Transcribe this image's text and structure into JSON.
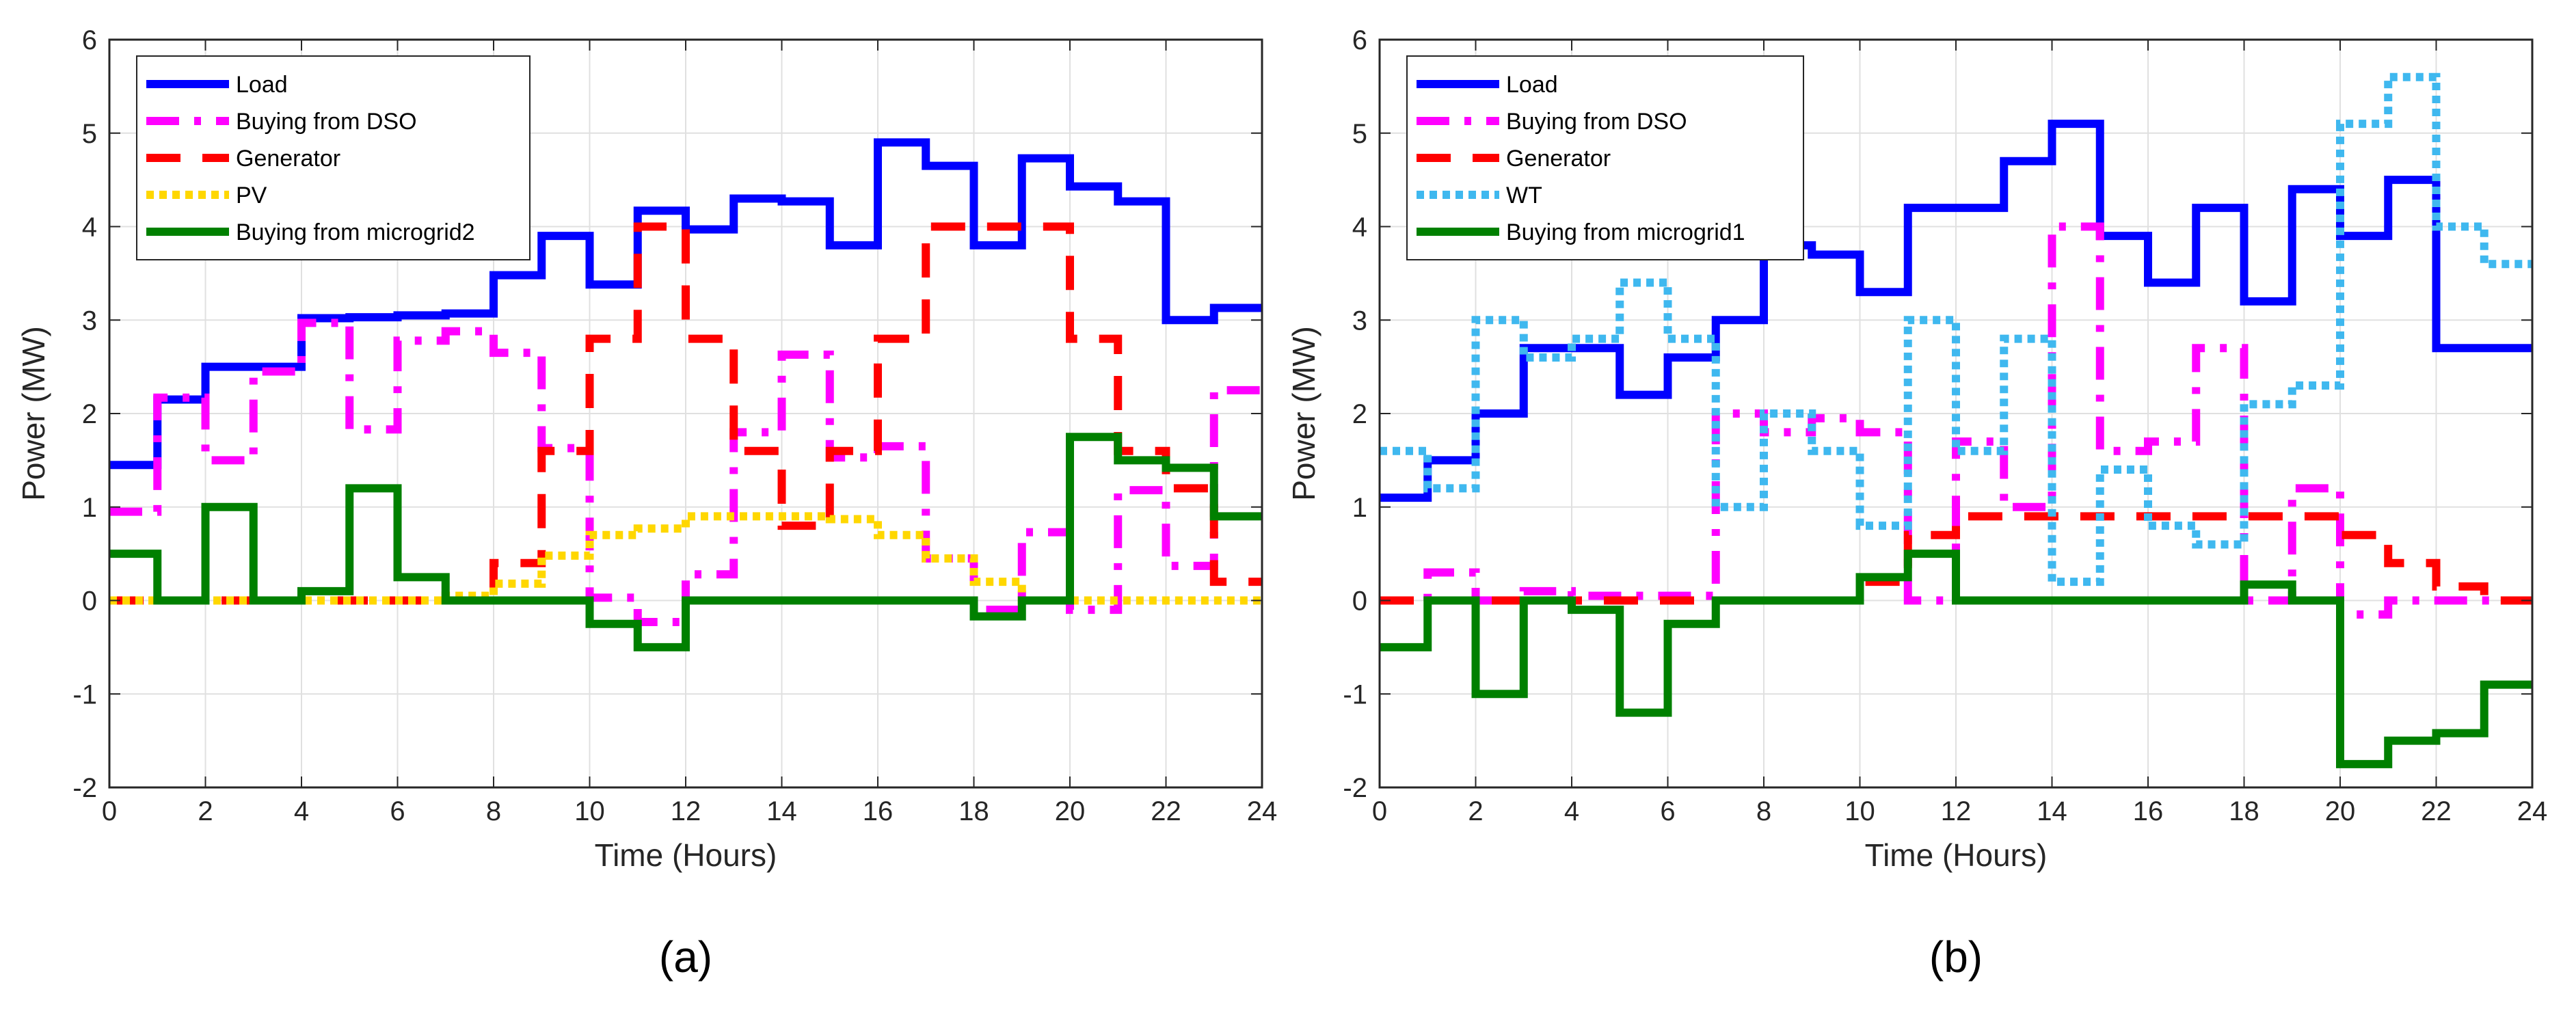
{
  "chart_data": [
    {
      "type": "line",
      "step": true,
      "panel_label": "(a)",
      "xlabel": "Time (Hours)",
      "ylabel": "Power (MW)",
      "xlim": [
        0,
        24
      ],
      "ylim": [
        -2,
        6
      ],
      "xticks": [
        "0",
        "2",
        "4",
        "6",
        "8",
        "10",
        "12",
        "14",
        "16",
        "18",
        "20",
        "22",
        "24"
      ],
      "yticks": [
        "-2",
        "-1",
        "0",
        "1",
        "2",
        "3",
        "4",
        "5",
        "6"
      ],
      "grid": true,
      "legend_position": "top-left",
      "x": [
        0,
        1,
        2,
        3,
        4,
        5,
        6,
        7,
        8,
        9,
        10,
        11,
        12,
        13,
        14,
        15,
        16,
        17,
        18,
        19,
        20,
        21,
        22,
        23
      ],
      "series": [
        {
          "name": "Load",
          "color": "#0000ff",
          "style": "solid",
          "values": [
            1.45,
            2.15,
            2.5,
            2.5,
            3.02,
            3.03,
            3.05,
            3.07,
            3.48,
            3.9,
            3.38,
            4.17,
            3.97,
            4.3,
            4.27,
            3.8,
            4.9,
            4.65,
            3.8,
            4.73,
            4.43,
            4.27,
            3.0,
            3.13
          ]
        },
        {
          "name": "Buying from DSO",
          "color": "#ff00ff",
          "style": "dashdot",
          "values": [
            0.95,
            2.17,
            1.5,
            2.45,
            2.97,
            1.83,
            2.78,
            2.88,
            2.65,
            1.63,
            0.03,
            -0.23,
            0.28,
            1.8,
            2.63,
            1.53,
            1.65,
            0.45,
            -0.1,
            0.73,
            -0.1,
            1.18,
            0.37,
            2.25
          ]
        },
        {
          "name": "Generator",
          "color": "#ff0000",
          "style": "dashed",
          "values": [
            0,
            0,
            0,
            0,
            0,
            0,
            0,
            0,
            0.4,
            1.6,
            2.8,
            4.0,
            2.8,
            1.6,
            0.8,
            1.6,
            2.8,
            4.0,
            4.0,
            4.0,
            2.8,
            1.6,
            1.2,
            0.2
          ]
        },
        {
          "name": "PV",
          "color": "#ffd700",
          "style": "dotted",
          "values": [
            0,
            0,
            0,
            0,
            0,
            0,
            0,
            0.05,
            0.18,
            0.48,
            0.7,
            0.77,
            0.9,
            0.9,
            0.9,
            0.87,
            0.7,
            0.45,
            0.2,
            0,
            0,
            0,
            0,
            0
          ]
        },
        {
          "name": "Buying from microgrid2",
          "color": "#008000",
          "style": "solid",
          "values": [
            0.5,
            0,
            1.0,
            0,
            0.1,
            1.2,
            0.25,
            0,
            0,
            0,
            -0.25,
            -0.5,
            0,
            0,
            0,
            0,
            0,
            0,
            -0.17,
            0,
            1.75,
            1.5,
            1.42,
            0.9
          ]
        }
      ]
    },
    {
      "type": "line",
      "step": true,
      "panel_label": "(b)",
      "xlabel": "Time (Hours)",
      "ylabel": "Power (MW)",
      "xlim": [
        0,
        24
      ],
      "ylim": [
        -2,
        6
      ],
      "xticks": [
        "0",
        "2",
        "4",
        "6",
        "8",
        "10",
        "12",
        "14",
        "16",
        "18",
        "20",
        "22",
        "24"
      ],
      "yticks": [
        "-2",
        "-1",
        "0",
        "1",
        "2",
        "3",
        "4",
        "5",
        "6"
      ],
      "grid": true,
      "legend_position": "top-left",
      "x": [
        0,
        1,
        2,
        3,
        4,
        5,
        6,
        7,
        8,
        9,
        10,
        11,
        12,
        13,
        14,
        15,
        16,
        17,
        18,
        19,
        20,
        21,
        22,
        23
      ],
      "series": [
        {
          "name": "Load",
          "color": "#0000ff",
          "style": "solid",
          "values": [
            1.1,
            1.5,
            2.0,
            2.7,
            2.7,
            2.2,
            2.6,
            3.0,
            3.8,
            3.7,
            3.3,
            4.2,
            4.2,
            4.7,
            5.1,
            3.9,
            3.4,
            4.2,
            3.2,
            4.4,
            3.9,
            4.5,
            2.7,
            2.7
          ]
        },
        {
          "name": "Buying from DSO",
          "color": "#ff00ff",
          "style": "dashdot",
          "values": [
            0,
            0.3,
            0,
            0.1,
            0.05,
            0.05,
            0.05,
            2.0,
            1.8,
            1.95,
            1.8,
            0,
            1.7,
            1.0,
            4.0,
            1.6,
            1.7,
            2.7,
            0,
            1.2,
            -0.15,
            0,
            0,
            0
          ]
        },
        {
          "name": "Generator",
          "color": "#ff0000",
          "style": "dashed",
          "values": [
            0,
            0,
            0,
            0,
            0,
            0,
            0,
            0,
            0,
            0,
            0.2,
            0.7,
            0.9,
            0.9,
            0.9,
            0.9,
            0.9,
            0.9,
            0.9,
            0.9,
            0.7,
            0.4,
            0.15,
            0
          ]
        },
        {
          "name": "WT",
          "color": "#3fb8ef",
          "style": "dotted",
          "values": [
            1.6,
            1.2,
            3.0,
            2.6,
            2.8,
            3.4,
            2.8,
            1.0,
            2.0,
            1.6,
            0.8,
            3.0,
            1.6,
            2.8,
            0.2,
            1.4,
            0.8,
            0.6,
            2.1,
            2.3,
            5.1,
            5.6,
            4.0,
            3.6
          ]
        },
        {
          "name": "Buying from microgrid1",
          "color": "#008000",
          "style": "solid",
          "values": [
            -0.5,
            0,
            -1.0,
            0,
            -0.1,
            -1.2,
            -0.25,
            0,
            0,
            0,
            0.25,
            0.5,
            0,
            0,
            0,
            0,
            0,
            0,
            0.17,
            0,
            -1.75,
            -1.5,
            -1.42,
            -0.9
          ]
        }
      ]
    }
  ]
}
